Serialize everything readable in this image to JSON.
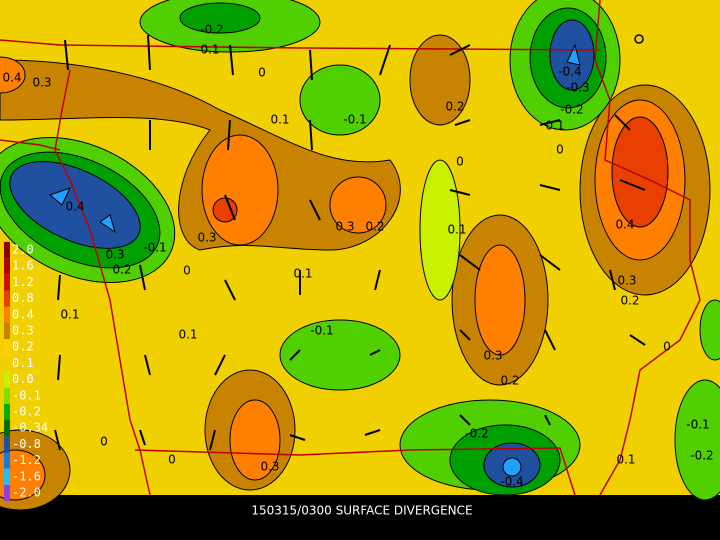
{
  "caption": "150315/0300 SURFACE DIVERGENCE",
  "colorbar": {
    "labels": [
      "2.0",
      "1.6",
      "1.2",
      "0.8",
      "0.4",
      "0.3",
      "0.2",
      "0.1",
      "0.0",
      "-0.1",
      "-0.2",
      "-0.34",
      "-0.8",
      "-1.2",
      "-1.6",
      "-2.0"
    ]
  },
  "contour_labels": [
    "-0.2",
    "0.1",
    "0",
    "0.4",
    "0.3",
    "-0.1",
    "0.1",
    "0.2",
    "-0.4",
    "-0.3",
    "-0.2",
    "0.1",
    "0",
    "0",
    "0.4",
    "0.3",
    "0.3",
    "0.2",
    "0.1",
    "0.4",
    "0.3",
    "0.2",
    "0.3",
    "-0.1",
    "0.2",
    "0",
    "0.1",
    "0.1",
    "0.1",
    "-0.1",
    "0.3",
    "0.2",
    "0",
    "0",
    "0",
    "0.3",
    "-0.2",
    "-0.4",
    "0.1",
    "-0.1",
    "-0.2"
  ]
}
